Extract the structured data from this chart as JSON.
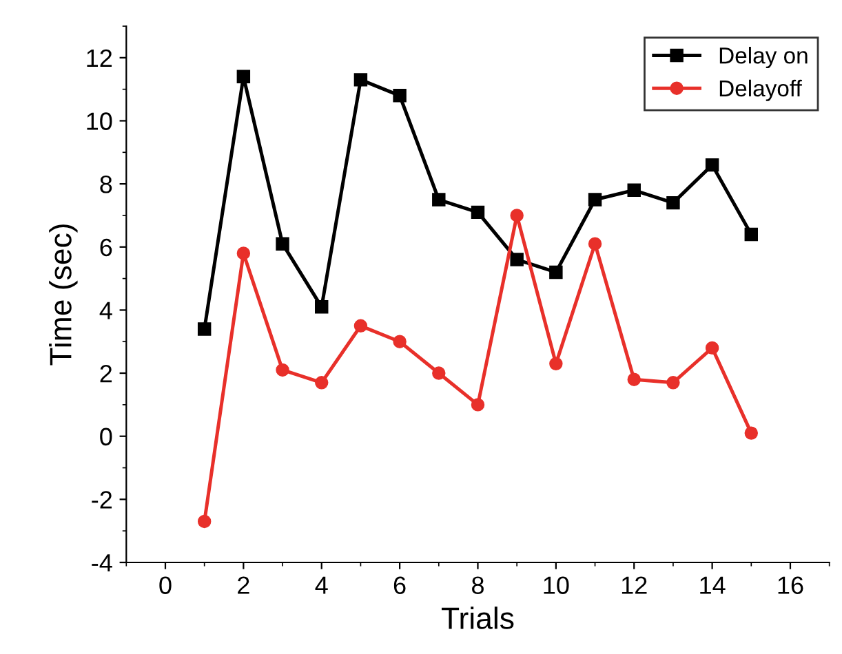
{
  "chart_data": {
    "type": "line",
    "xlabel": "Trials",
    "ylabel": "Time (sec)",
    "x": [
      1,
      2,
      3,
      4,
      5,
      6,
      7,
      8,
      9,
      10,
      11,
      12,
      13,
      14,
      15
    ],
    "series": [
      {
        "name": "Delay on",
        "color": "#000000",
        "marker": "square",
        "values": [
          3.4,
          11.4,
          6.1,
          4.1,
          11.3,
          10.8,
          7.5,
          7.1,
          5.6,
          5.2,
          7.5,
          7.8,
          7.4,
          8.6,
          6.4
        ]
      },
      {
        "name": "Delayoff",
        "color": "#e8302a",
        "marker": "circle",
        "values": [
          -2.7,
          5.8,
          2.1,
          1.7,
          3.5,
          3.0,
          2.0,
          1.0,
          7.0,
          2.3,
          6.1,
          1.8,
          1.7,
          2.8,
          0.1
        ]
      }
    ],
    "xlim": [
      -1,
      17
    ],
    "ylim": [
      -4,
      13
    ],
    "xticks": [
      0,
      2,
      4,
      6,
      8,
      10,
      12,
      14,
      16
    ],
    "yticks": [
      -4,
      -2,
      0,
      2,
      4,
      6,
      8,
      10,
      12
    ],
    "grid": false,
    "legend": "top right"
  }
}
